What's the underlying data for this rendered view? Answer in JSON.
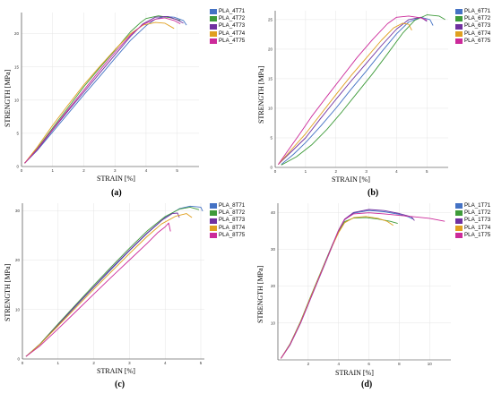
{
  "colors": [
    "#4472c4",
    "#3e9b3a",
    "#7030a0",
    "#e0a020",
    "#cc2a9a"
  ],
  "chart_data": [
    {
      "type": "line",
      "caption": "(a)",
      "xlabel": "STRAIN [%]",
      "ylabel": "STRENGTH [MPa]",
      "xlim": [
        0,
        5.7
      ],
      "ylim": [
        0,
        23.2
      ],
      "xticks": [
        0,
        1,
        2,
        3,
        4,
        5
      ],
      "yticks": [
        0,
        5,
        10,
        15,
        20
      ],
      "legend_position": "top-right",
      "series": [
        {
          "name": "PLA_4T71",
          "x": [
            0.1,
            0.5,
            1.0,
            1.5,
            2.0,
            2.5,
            3.0,
            3.5,
            4.0,
            4.3,
            4.6,
            4.9,
            5.2,
            5.3
          ],
          "y": [
            0.5,
            2.4,
            5.2,
            8.0,
            10.8,
            13.5,
            16.3,
            19.0,
            21.2,
            22.2,
            22.6,
            22.5,
            22.0,
            21.3
          ]
        },
        {
          "name": "PLA_4T72",
          "x": [
            0.1,
            0.5,
            1.0,
            1.5,
            2.0,
            2.5,
            3.0,
            3.5,
            3.8,
            4.0,
            4.4,
            4.8,
            5.1
          ],
          "y": [
            0.5,
            2.7,
            5.8,
            8.9,
            12.0,
            14.8,
            17.5,
            20.3,
            21.6,
            22.3,
            22.7,
            22.4,
            22.0
          ]
        },
        {
          "name": "PLA_4T73",
          "x": [
            0.1,
            0.5,
            1.0,
            1.5,
            2.0,
            2.5,
            3.0,
            3.5,
            3.9,
            4.3,
            4.7,
            5.0,
            5.2
          ],
          "y": [
            0.5,
            2.5,
            5.5,
            8.4,
            11.2,
            14.0,
            16.8,
            19.6,
            21.5,
            22.5,
            22.6,
            22.1,
            21.6
          ]
        },
        {
          "name": "PLA_4T74",
          "x": [
            0.1,
            0.5,
            1.0,
            1.5,
            2.0,
            2.5,
            3.0,
            3.5,
            3.9,
            4.3,
            4.6,
            4.9
          ],
          "y": [
            0.5,
            2.9,
            6.2,
            9.3,
            12.3,
            15.0,
            17.6,
            20.0,
            21.3,
            21.7,
            21.6,
            20.8
          ]
        },
        {
          "name": "PLA_4T75",
          "x": [
            0.1,
            0.5,
            1.0,
            1.5,
            2.0,
            2.5,
            3.0,
            3.5,
            3.9,
            4.3,
            4.6,
            4.9,
            5.1
          ],
          "y": [
            0.5,
            2.6,
            5.6,
            8.6,
            11.5,
            14.4,
            17.2,
            19.8,
            21.4,
            22.2,
            22.4,
            22.0,
            21.5
          ]
        }
      ]
    },
    {
      "type": "line",
      "caption": "(b)",
      "xlabel": "STRAIN [%]",
      "ylabel": "STRENGTH [MPa]",
      "xlim": [
        0,
        5.7
      ],
      "ylim": [
        0,
        26.5
      ],
      "xticks": [
        0,
        1,
        2,
        3,
        4,
        5
      ],
      "yticks": [
        0,
        5,
        10,
        15,
        20,
        25
      ],
      "legend_position": "top-right",
      "series": [
        {
          "name": "PLA_6T71",
          "x": [
            0.2,
            0.6,
            1.0,
            1.5,
            2.0,
            2.5,
            3.0,
            3.5,
            4.0,
            4.4,
            4.8,
            5.1,
            5.2
          ],
          "y": [
            0.5,
            2.2,
            4.2,
            7.0,
            10.0,
            13.2,
            16.3,
            19.5,
            22.6,
            24.6,
            25.4,
            25.0,
            24.0
          ]
        },
        {
          "name": "PLA_6T72",
          "x": [
            0.2,
            0.7,
            1.2,
            1.7,
            2.2,
            2.7,
            3.2,
            3.7,
            4.2,
            4.6,
            5.0,
            5.4,
            5.6
          ],
          "y": [
            0.4,
            1.8,
            3.8,
            6.4,
            9.4,
            12.6,
            15.8,
            19.2,
            22.7,
            24.9,
            25.8,
            25.6,
            25.0
          ]
        },
        {
          "name": "PLA_6T73",
          "x": [
            0.1,
            0.5,
            1.0,
            1.5,
            2.0,
            2.5,
            3.0,
            3.5,
            4.0,
            4.4,
            4.8,
            5.0
          ],
          "y": [
            0.5,
            2.5,
            5.0,
            8.3,
            11.5,
            14.6,
            17.6,
            20.6,
            23.4,
            25.0,
            25.4,
            24.7
          ]
        },
        {
          "name": "PLA_6T74",
          "x": [
            0.1,
            0.5,
            1.0,
            1.5,
            2.0,
            2.5,
            3.0,
            3.5,
            3.9,
            4.2,
            4.4,
            4.5
          ],
          "y": [
            0.5,
            2.8,
            5.7,
            9.0,
            12.3,
            15.5,
            18.5,
            21.5,
            23.6,
            24.4,
            24.2,
            23.2
          ]
        },
        {
          "name": "PLA_6T75",
          "x": [
            0.1,
            0.4,
            0.8,
            1.2,
            1.7,
            2.2,
            2.7,
            3.2,
            3.7,
            4.0,
            4.4,
            4.8,
            5.0
          ],
          "y": [
            0.5,
            2.7,
            5.6,
            8.6,
            12.0,
            15.3,
            18.6,
            21.6,
            24.3,
            25.4,
            25.6,
            25.3,
            24.9
          ]
        }
      ]
    },
    {
      "type": "line",
      "caption": "(c)",
      "xlabel": "STRAIN [%]",
      "ylabel": "STRENGTH [MPa]",
      "xlim": [
        0,
        5.1
      ],
      "ylim": [
        0,
        31.5
      ],
      "xticks": [
        0,
        1,
        2,
        3,
        4,
        5
      ],
      "yticks": [
        0,
        10,
        20,
        30
      ],
      "legend_position": "top-right",
      "series": [
        {
          "name": "PLA_8T71",
          "x": [
            0.1,
            0.5,
            1.0,
            1.5,
            2.0,
            2.5,
            3.0,
            3.5,
            4.0,
            4.4,
            4.7,
            5.0,
            5.05
          ],
          "y": [
            0.5,
            3.0,
            6.9,
            10.7,
            14.5,
            18.2,
            21.9,
            25.4,
            28.6,
            30.4,
            30.9,
            30.7,
            29.9
          ]
        },
        {
          "name": "PLA_8T72",
          "x": [
            0.1,
            0.5,
            1.0,
            1.5,
            2.0,
            2.5,
            3.0,
            3.5,
            4.0,
            4.4,
            4.7,
            4.95
          ],
          "y": [
            0.5,
            3.1,
            7.1,
            11.0,
            14.9,
            18.7,
            22.4,
            25.9,
            28.8,
            30.3,
            30.7,
            30.2
          ]
        },
        {
          "name": "PLA_8T73",
          "x": [
            0.1,
            0.5,
            1.0,
            1.5,
            2.0,
            2.5,
            3.0,
            3.5,
            3.9,
            4.2,
            4.35,
            4.4
          ],
          "y": [
            0.5,
            3.0,
            6.9,
            10.8,
            14.6,
            18.4,
            22.0,
            25.5,
            28.0,
            29.4,
            29.5,
            28.6
          ]
        },
        {
          "name": "PLA_8T74",
          "x": [
            0.1,
            0.5,
            1.0,
            1.5,
            2.0,
            2.5,
            3.0,
            3.5,
            3.9,
            4.3,
            4.6,
            4.75
          ],
          "y": [
            0.5,
            3.0,
            6.7,
            10.4,
            14.1,
            17.7,
            21.3,
            24.8,
            27.3,
            28.9,
            29.4,
            28.6
          ]
        },
        {
          "name": "PLA_8T75",
          "x": [
            0.1,
            0.5,
            1.0,
            1.5,
            2.0,
            2.5,
            3.0,
            3.5,
            3.8,
            4.0,
            4.1,
            4.15
          ],
          "y": [
            0.5,
            2.7,
            6.1,
            9.6,
            13.1,
            16.6,
            20.0,
            23.4,
            25.6,
            26.7,
            27.5,
            25.8
          ]
        }
      ]
    },
    {
      "type": "line",
      "caption": "(d)",
      "xlabel": "STRAIN [%]",
      "ylabel": "STRENGTH [MPa]",
      "xlim": [
        0,
        11.4
      ],
      "ylim": [
        0,
        42.5
      ],
      "xticks": [
        2,
        4,
        6,
        8,
        10
      ],
      "yticks": [
        10,
        20,
        30,
        40
      ],
      "legend_position": "top-right",
      "series": [
        {
          "name": "PLA_1T71",
          "x": [
            0.2,
            0.8,
            1.5,
            2.2,
            3.0,
            3.6,
            4.0,
            4.4,
            5.0,
            6.0,
            7.0,
            8.0,
            8.6,
            8.9
          ],
          "y": [
            0.4,
            4.0,
            10.0,
            17.0,
            25.0,
            31.0,
            35.0,
            38.0,
            39.8,
            40.5,
            40.2,
            39.5,
            38.8,
            38.2
          ]
        },
        {
          "name": "PLA_1T72",
          "x": [
            0.2,
            0.8,
            1.5,
            2.2,
            3.0,
            3.6,
            4.0,
            4.4,
            5.0,
            5.8,
            6.6,
            7.4,
            7.9
          ],
          "y": [
            0.4,
            4.3,
            10.5,
            17.6,
            25.5,
            31.3,
            34.8,
            37.5,
            38.5,
            38.6,
            38.2,
            37.6,
            37.0
          ]
        },
        {
          "name": "PLA_1T73",
          "x": [
            0.2,
            0.8,
            1.5,
            2.2,
            3.0,
            3.6,
            4.0,
            4.4,
            5.0,
            6.0,
            7.0,
            8.0,
            8.8,
            9.0
          ],
          "y": [
            0.4,
            4.1,
            10.2,
            17.2,
            25.2,
            31.2,
            35.2,
            38.2,
            40.0,
            40.8,
            40.5,
            39.7,
            38.8,
            37.8
          ]
        },
        {
          "name": "PLA_1T74",
          "x": [
            0.2,
            0.8,
            1.5,
            2.2,
            3.0,
            3.6,
            4.0,
            4.4,
            5.0,
            5.8,
            6.6,
            7.2,
            7.6
          ],
          "y": [
            0.4,
            4.2,
            10.3,
            17.4,
            25.3,
            31.0,
            34.5,
            37.2,
            38.6,
            38.9,
            38.4,
            37.6,
            36.5
          ]
        },
        {
          "name": "PLA_1T75",
          "x": [
            0.2,
            0.8,
            1.5,
            2.2,
            3.0,
            3.6,
            4.0,
            4.4,
            5.0,
            6.0,
            7.0,
            8.0,
            9.0,
            10.0,
            11.0
          ],
          "y": [
            0.4,
            4.1,
            10.1,
            17.1,
            25.1,
            31.1,
            35.1,
            38.1,
            39.6,
            39.9,
            39.6,
            39.2,
            38.8,
            38.4,
            37.6
          ]
        }
      ]
    }
  ]
}
